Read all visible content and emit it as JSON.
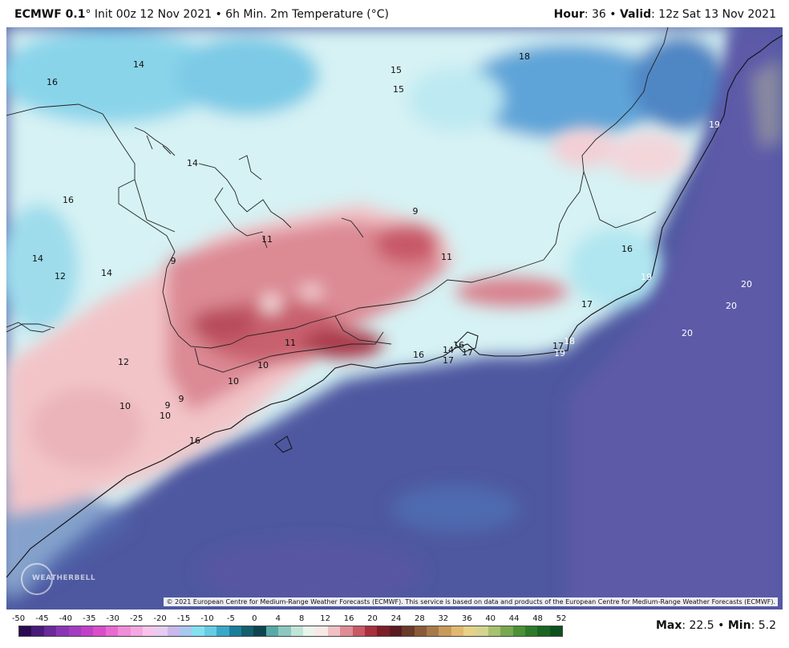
{
  "header": {
    "model": "ECMWF 0.1",
    "model_suffix": "° Init 00z 12 Nov 2021 • 6h Min. 2m Temperature (°C)",
    "hour_label": "Hour",
    "hour_value": ": 36 • ",
    "valid_label": "Valid",
    "valid_value": ": 12z Sat 13 Nov 2021"
  },
  "map": {
    "copyright": "© 2021 European Centre for Medium-Range Weather Forecasts (ECMWF). This service is based on data and products of the European Centre for Medium-Range Weather Forecasts (ECMWF).",
    "logo_text": "WEATHERBELL",
    "labels": [
      {
        "text": "14",
        "c": "dark",
        "lx": 173,
        "ly": 80
      },
      {
        "text": "16",
        "c": "dark",
        "lx": 65,
        "ly": 102
      },
      {
        "text": "15",
        "c": "dark",
        "lx": 494,
        "ly": 87
      },
      {
        "text": "15",
        "c": "dark",
        "lx": 497,
        "ly": 111
      },
      {
        "text": "18",
        "c": "dark",
        "lx": 654,
        "ly": 70
      },
      {
        "text": "19",
        "c": "light",
        "lx": 891,
        "ly": 155
      },
      {
        "text": "14",
        "c": "dark",
        "lx": 240,
        "ly": 203
      },
      {
        "text": "16",
        "c": "dark",
        "lx": 85,
        "ly": 249
      },
      {
        "text": "9",
        "c": "dark",
        "lx": 518,
        "ly": 263
      },
      {
        "text": "11",
        "c": "dark",
        "lx": 333,
        "ly": 298
      },
      {
        "text": "11",
        "c": "dark",
        "lx": 557,
        "ly": 320
      },
      {
        "text": "9",
        "c": "dark",
        "lx": 216,
        "ly": 325
      },
      {
        "text": "14",
        "c": "dark",
        "lx": 47,
        "ly": 322
      },
      {
        "text": "12",
        "c": "dark",
        "lx": 75,
        "ly": 344
      },
      {
        "text": "14",
        "c": "dark",
        "lx": 133,
        "ly": 340
      },
      {
        "text": "16",
        "c": "dark",
        "lx": 782,
        "ly": 310
      },
      {
        "text": "19",
        "c": "light",
        "lx": 806,
        "ly": 345
      },
      {
        "text": "20",
        "c": "light",
        "lx": 931,
        "ly": 354
      },
      {
        "text": "20",
        "c": "light",
        "lx": 912,
        "ly": 381
      },
      {
        "text": "17",
        "c": "dark",
        "lx": 732,
        "ly": 379
      },
      {
        "text": "20",
        "c": "light",
        "lx": 857,
        "ly": 415
      },
      {
        "text": "11",
        "c": "dark",
        "lx": 362,
        "ly": 427
      },
      {
        "text": "16",
        "c": "dark",
        "lx": 522,
        "ly": 442
      },
      {
        "text": "14",
        "c": "dark",
        "lx": 559,
        "ly": 436
      },
      {
        "text": "16",
        "c": "dark",
        "lx": 572,
        "ly": 430
      },
      {
        "text": "17",
        "c": "dark",
        "lx": 583,
        "ly": 439
      },
      {
        "text": "17",
        "c": "dark",
        "lx": 559,
        "ly": 449
      },
      {
        "text": "17",
        "c": "dark",
        "lx": 696,
        "ly": 431
      },
      {
        "text": "18",
        "c": "light",
        "lx": 710,
        "ly": 425
      },
      {
        "text": "19",
        "c": "light",
        "lx": 698,
        "ly": 440
      },
      {
        "text": "12",
        "c": "dark",
        "lx": 154,
        "ly": 451
      },
      {
        "text": "10",
        "c": "dark",
        "lx": 328,
        "ly": 455
      },
      {
        "text": "10",
        "c": "dark",
        "lx": 291,
        "ly": 475
      },
      {
        "text": "9",
        "c": "dark",
        "lx": 226,
        "ly": 497
      },
      {
        "text": "9",
        "c": "dark",
        "lx": 209,
        "ly": 505
      },
      {
        "text": "10",
        "c": "dark",
        "lx": 156,
        "ly": 506
      },
      {
        "text": "10",
        "c": "dark",
        "lx": 206,
        "ly": 518
      },
      {
        "text": "16",
        "c": "dark",
        "lx": 243,
        "ly": 549
      }
    ]
  },
  "colorbar": {
    "ticks": [
      "-50",
      "-45",
      "-40",
      "-35",
      "-30",
      "-25",
      "-20",
      "-15",
      "-10",
      "-5",
      "0",
      "4",
      "8",
      "12",
      "16",
      "20",
      "24",
      "28",
      "32",
      "36",
      "40",
      "44",
      "48",
      "52"
    ],
    "colors": [
      "#2b0a4f",
      "#4a1a7a",
      "#6a2a9a",
      "#8a36b4",
      "#a43cc2",
      "#c040c8",
      "#d94ec8",
      "#e86ad0",
      "#f08cd8",
      "#f4a8e0",
      "#f8c4ec",
      "#e6ccf0",
      "#c8b8ec",
      "#a8c8f0",
      "#84e0f0",
      "#66cce4",
      "#3aa8c8",
      "#1a7e9a",
      "#145e6e",
      "#0e4450",
      "#58a8a8",
      "#8cc8c0",
      "#c0e4d8",
      "#e8f4ec",
      "#f8e8e8",
      "#f0c0c4",
      "#e08c94",
      "#c85864",
      "#a8303c",
      "#7c1e28",
      "#5a1a20",
      "#6a3a2a",
      "#8a5a3a",
      "#a87a4a",
      "#c89a5a",
      "#e0b870",
      "#e8d088",
      "#d4d490",
      "#a8c070",
      "#78a850",
      "#4c9038",
      "#2e7a2c",
      "#1a6424",
      "#0e501c"
    ],
    "max_label": "Max",
    "max_value": ": 22.5 • ",
    "min_label": "Min",
    "min_value": ": 5.2"
  }
}
